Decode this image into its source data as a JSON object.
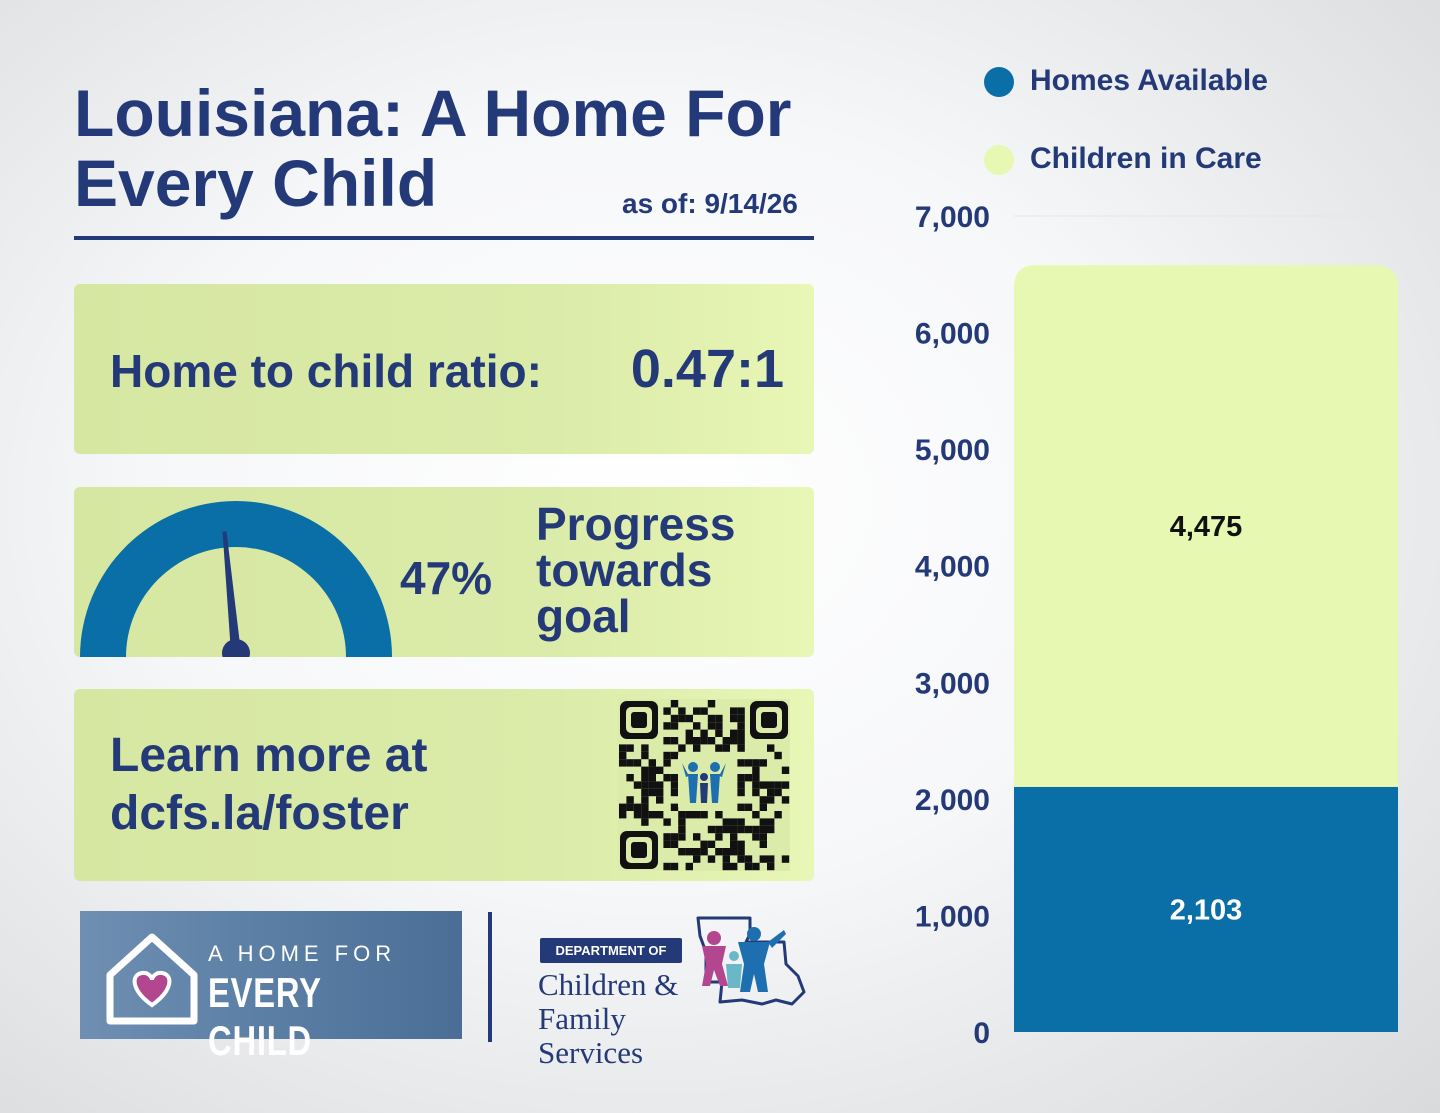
{
  "header": {
    "title": "Louisiana: A Home For Every Child",
    "as_of": "as of: 9/14/26"
  },
  "ratio_card": {
    "label": "Home to child ratio:",
    "value": "0.47:1"
  },
  "progress_card": {
    "percent_label": "47%",
    "percent_value": 47,
    "text": "Progress towards goal"
  },
  "learn_card": {
    "text": "Learn more at dcfs.la/foster"
  },
  "logos": {
    "home_line1": "A HOME FOR",
    "home_line2": "EVERY CHILD",
    "dept_tag": "DEPARTMENT OF",
    "dept_name": "Children & Family Services"
  },
  "colors": {
    "navy": "#243978",
    "homes": "#0a6ea7",
    "children": "#e6f8b2",
    "card": "#d6e7a2"
  },
  "chart_data": {
    "type": "bar",
    "stacked": true,
    "categories": [
      ""
    ],
    "series": [
      {
        "name": "Homes Available",
        "values": [
          2103
        ],
        "labels": [
          "2,103"
        ],
        "color": "#0a6ea7"
      },
      {
        "name": "Children in Care",
        "values": [
          4475
        ],
        "labels": [
          "4,475"
        ],
        "color": "#e6f8b2"
      }
    ],
    "ylim": [
      0,
      7000
    ],
    "yticks": [
      0,
      1000,
      2000,
      3000,
      4000,
      5000,
      6000,
      7000
    ],
    "ytick_labels": [
      "0",
      "1,000",
      "2,000",
      "3,000",
      "4,000",
      "5,000",
      "6,000",
      "7,000"
    ],
    "legend": "top-right"
  }
}
